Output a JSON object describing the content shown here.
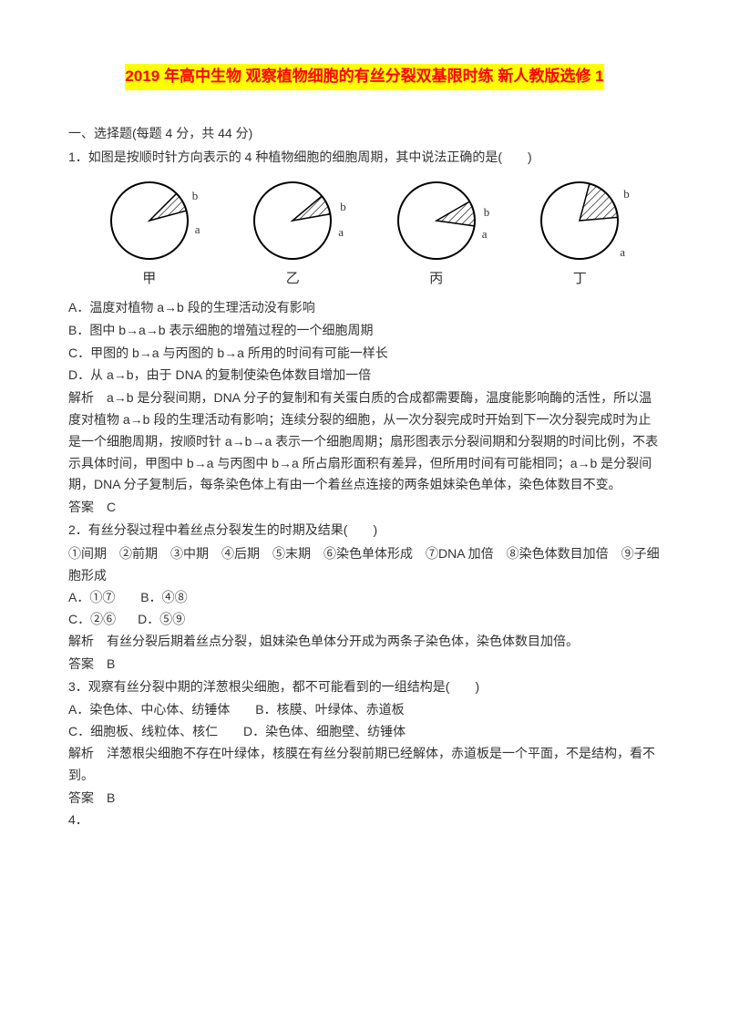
{
  "title": "2019 年高中生物 观察植物细胞的有丝分裂双基限时练 新人教版选修 1",
  "section1": "一、选择题(每题 4 分，共 44 分)",
  "q1": {
    "stem": "1．如图是按顺时针方向表示的 4 种植物细胞的细胞周期，其中说法正确的是(　　)",
    "diagrams": [
      {
        "label": "甲",
        "startDeg": 45,
        "endDeg": 15,
        "a_pos": {
          "t": 47,
          "l": 98
        },
        "b_pos": {
          "t": 10,
          "l": 95
        }
      },
      {
        "label": "乙",
        "startDeg": 40,
        "endDeg": 10,
        "a_pos": {
          "t": 50,
          "l": 98
        },
        "b_pos": {
          "t": 22,
          "l": 100
        }
      },
      {
        "label": "丙",
        "startDeg": 30,
        "endDeg": 352,
        "a_pos": {
          "t": 52,
          "l": 98
        },
        "b_pos": {
          "t": 28,
          "l": 100
        }
      },
      {
        "label": "丁",
        "startDeg": 75,
        "endDeg": 5,
        "a_pos": {
          "t": 72,
          "l": 92
        },
        "b_pos": {
          "t": 8,
          "l": 96
        }
      }
    ],
    "optA": "A．温度对植物 a→b 段的生理活动没有影响",
    "optB": "B．图中 b→a→b 表示细胞的增殖过程的一个细胞周期",
    "optC": "C．甲图的 b→a 与丙图的 b→a 所用的时间有可能一样长",
    "optD": "D．从 a→b，由于 DNA 的复制使染色体数目增加一倍",
    "explain": "解析　a→b 是分裂间期，DNA 分子的复制和有关蛋白质的合成都需要酶，温度能影响酶的活性，所以温度对植物 a→b 段的生理活动有影响；连续分裂的细胞，从一次分裂完成时开始到下一次分裂完成时为止是一个细胞周期，按顺时针 a→b→a 表示一个细胞周期；扇形图表示分裂间期和分裂期的时间比例，不表示具体时间，甲图中 b→a 与丙图中 b→a 所占扇形面积有差异，但所用时间有可能相同；a→b 是分裂间期，DNA 分子复制后，每条染色体上有由一个着丝点连接的两条姐妹染色单体，染色体数目不变。",
    "answer": "答案　C"
  },
  "q2": {
    "stem": "2．有丝分裂过程中着丝点分裂发生的时期及结果(　　)",
    "nums": "①间期　②前期　③中期　④后期　⑤末期　⑥染色单体形成　⑦DNA 加倍　⑧染色体数目加倍　⑨子细胞形成",
    "optA": "A．①⑦",
    "optB": "B．④⑧",
    "optC": "C．②⑥",
    "optD": "D．⑤⑨",
    "explain": "解析　有丝分裂后期着丝点分裂，姐妹染色单体分开成为两条子染色体，染色体数目加倍。",
    "answer": "答案　B"
  },
  "q3": {
    "stem": "3．观察有丝分裂中期的洋葱根尖细胞，都不可能看到的一组结构是(　　)",
    "optA": "A．染色体、中心体、纺锤体",
    "optB": "B．核膜、叶绿体、赤道板",
    "optC": "C．细胞板、线粒体、核仁",
    "optD": "D．染色体、细胞壁、纺锤体",
    "explain": "解析　洋葱根尖细胞不存在叶绿体，核膜在有丝分裂前期已经解体，赤道板是一个平面，不是结构，看不到。",
    "answer": "答案　B"
  },
  "q4": "4．",
  "colors": {
    "title_bg": "#ffff00",
    "title_fg": "#ff0000",
    "text": "#333333",
    "bg": "#ffffff",
    "stroke": "#000000",
    "hatch": "#000000"
  },
  "pie": {
    "radius": 42,
    "stroke_width": 2
  }
}
